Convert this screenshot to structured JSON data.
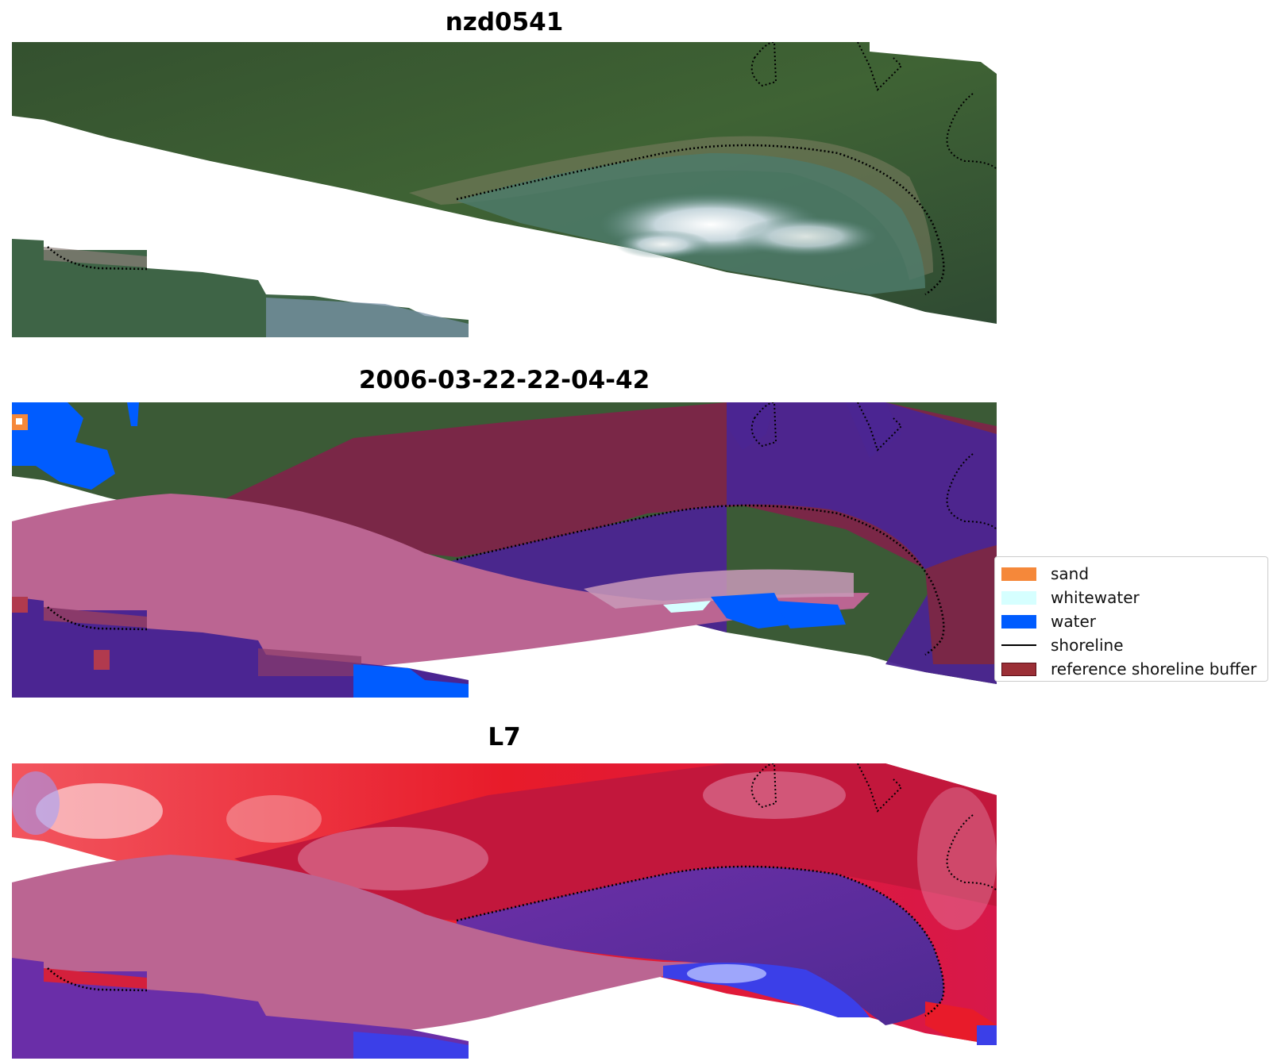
{
  "panels": [
    {
      "title": "nzd0541"
    },
    {
      "title": "2006-03-22-22-04-42"
    },
    {
      "title": "L7"
    }
  ],
  "legend": {
    "items": [
      {
        "label": "sand",
        "color": "#f5883a",
        "kind": "patch"
      },
      {
        "label": "whitewater",
        "color": "#d6ffff",
        "kind": "patch"
      },
      {
        "label": "water",
        "color": "#005cff",
        "kind": "patch"
      },
      {
        "label": "shoreline",
        "color": "#000000",
        "kind": "line"
      },
      {
        "label": "reference shoreline buffer",
        "color": "#9b2f36",
        "kind": "patch"
      }
    ]
  },
  "colors": {
    "vegetation": "#3b5a36",
    "buffer_pink": "#bb6592",
    "buffer_dark": "#7a2747",
    "class_purple": "#4b2592",
    "water_blue": "#005cff",
    "index_red": "#e81b2a",
    "index_purple": "#5a2a9a"
  }
}
